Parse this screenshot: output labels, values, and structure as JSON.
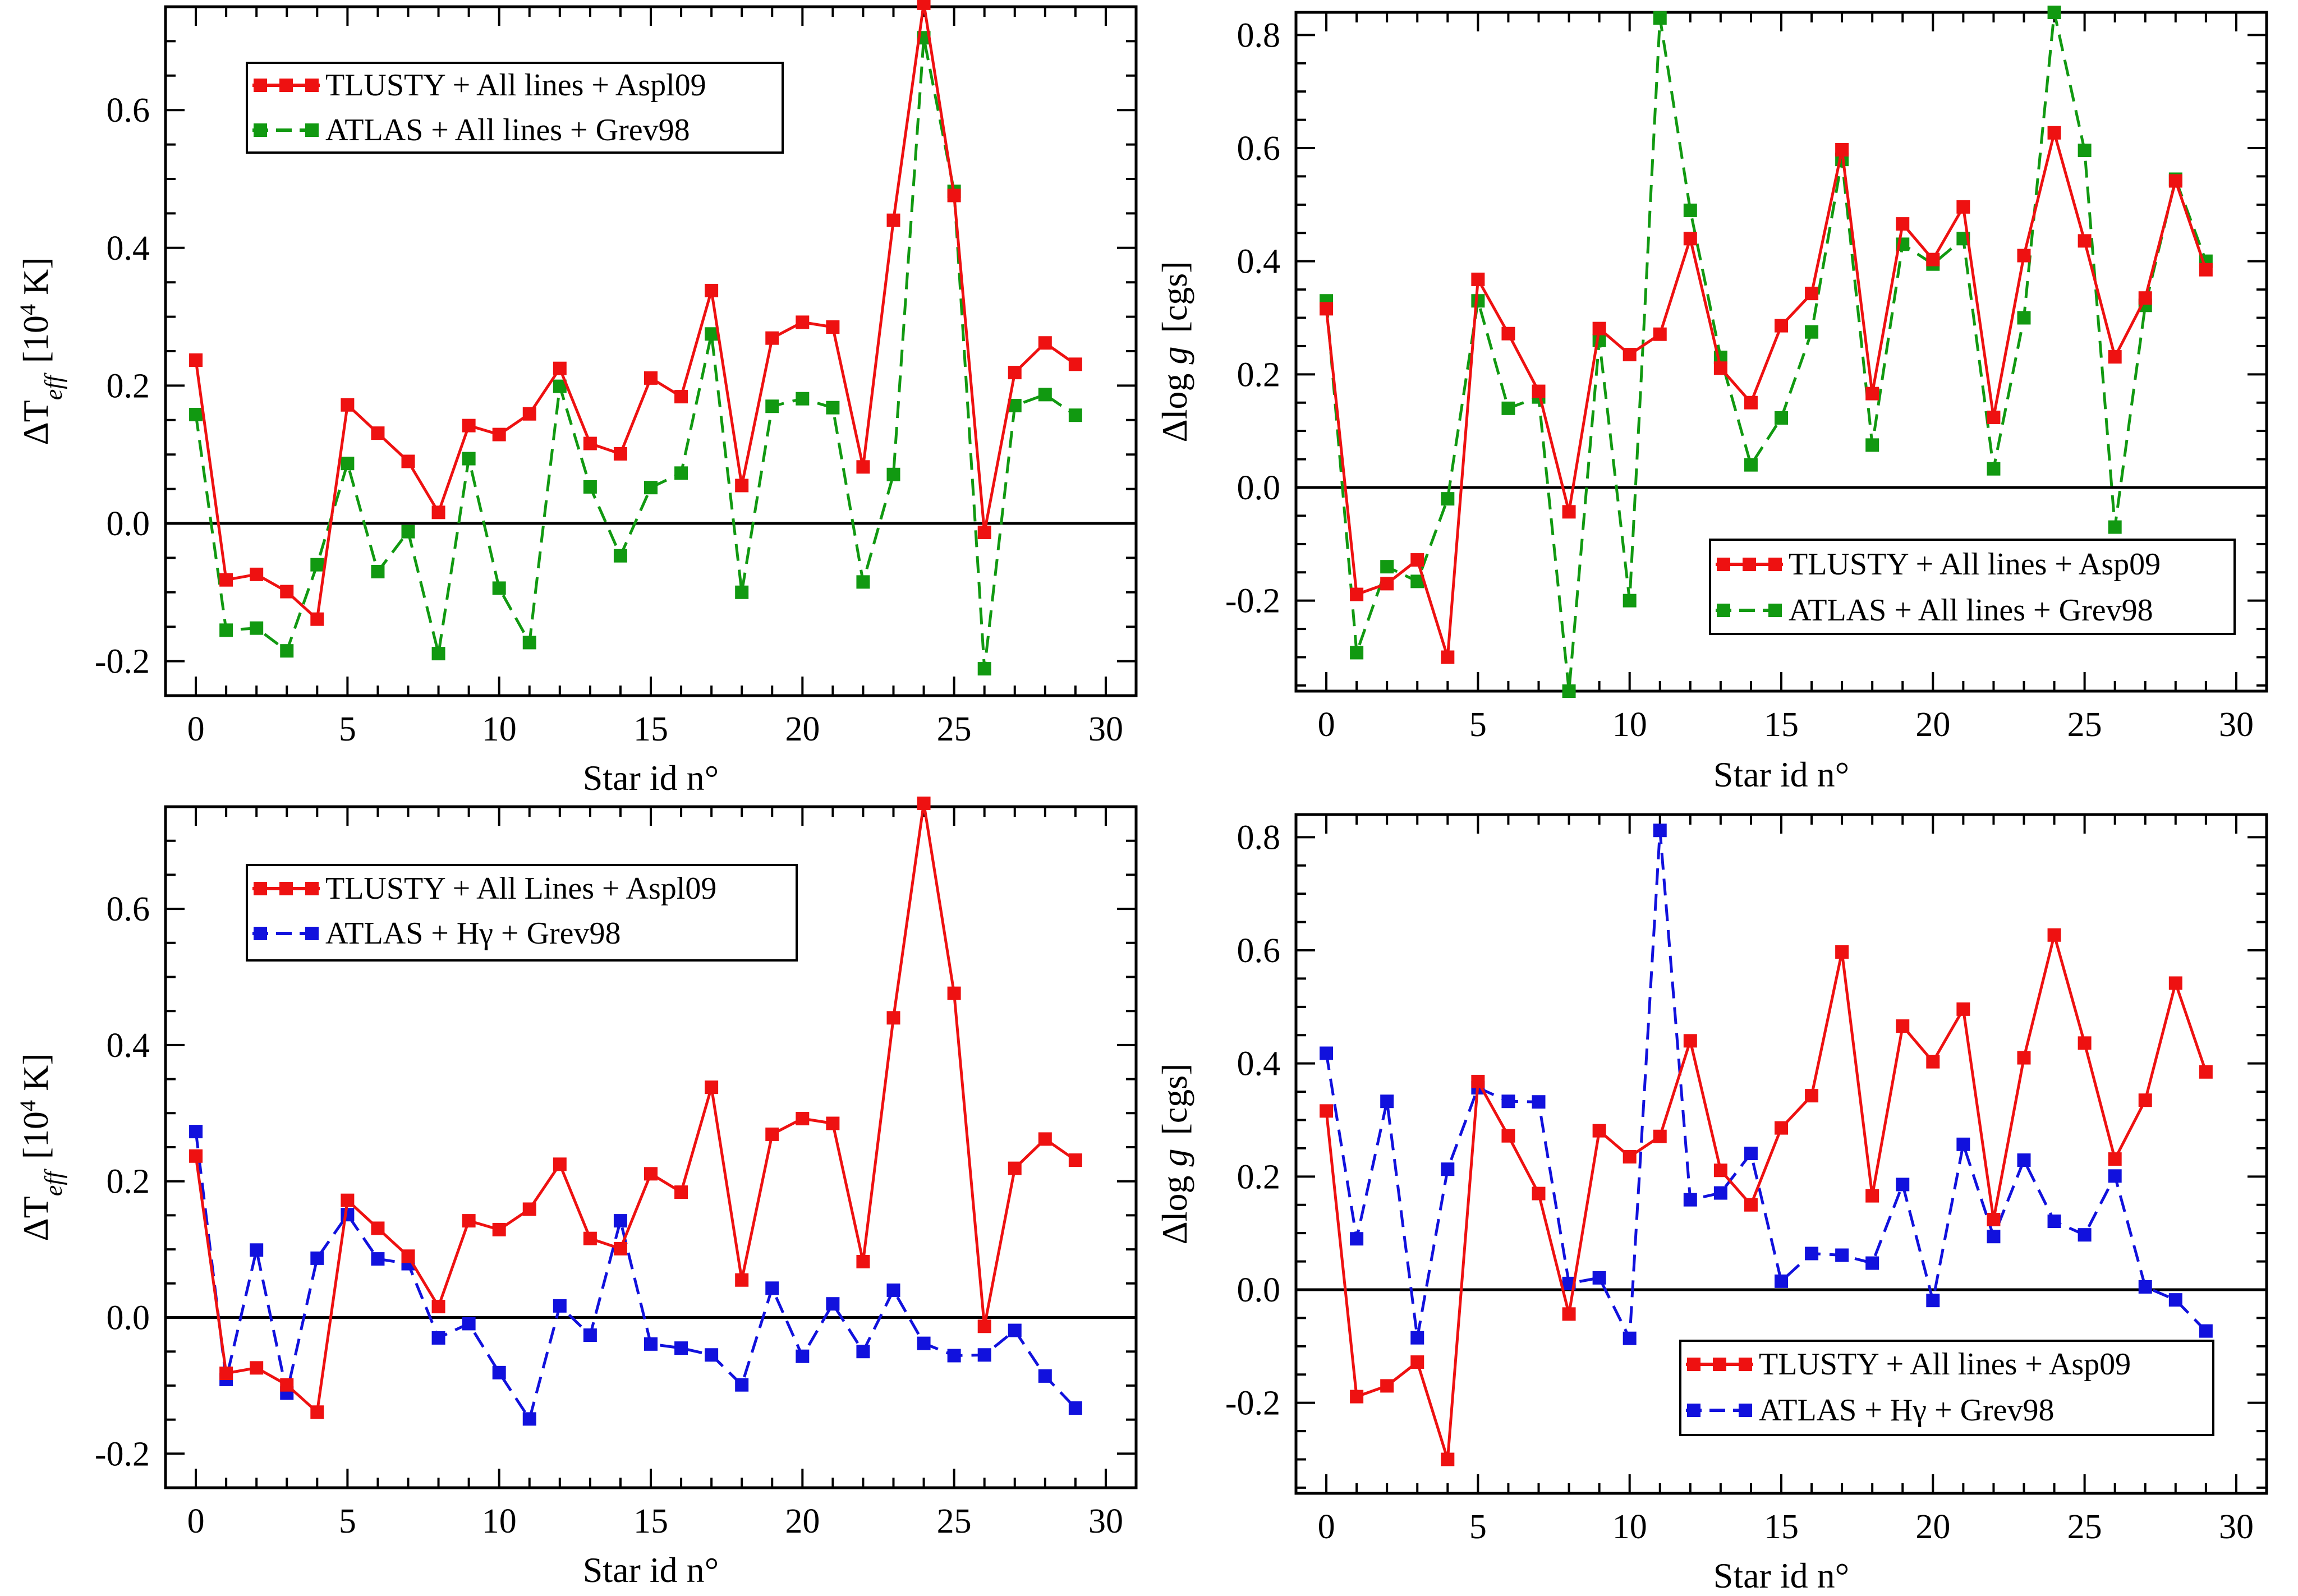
{
  "colors": {
    "red": "#ee1111",
    "green": "#119911",
    "blue": "#1111dd",
    "axis": "#000000"
  },
  "chart_data": [
    {
      "type": "line",
      "id": "teff_green",
      "ylabel": "ΔT",
      "ylabel_sub": "eff",
      "ylabel_unit_prefix": "[10",
      "ylabel_unit_exp": "4",
      "ylabel_unit_suffix": " K]",
      "xlabel": "Star id n°",
      "xlim": [
        -1,
        31
      ],
      "ylim": [
        -0.25,
        0.75
      ],
      "xticks": [
        0,
        5,
        10,
        15,
        20,
        25,
        30
      ],
      "xtick_labels": [
        "0",
        "5",
        "10",
        "15",
        "20",
        "25",
        "30"
      ],
      "yticks": [
        -0.2,
        0.0,
        0.2,
        0.4,
        0.6
      ],
      "ytick_labels": [
        "-0.2",
        "0.0",
        "0.2",
        "0.4",
        "0.6"
      ],
      "legend": "top-left",
      "series": [
        {
          "name": "TLUSTY + All lines + Aspl09",
          "color": "#ee1111",
          "dashed": false,
          "x": [
            0,
            1,
            2,
            3,
            4,
            5,
            6,
            7,
            8,
            9,
            10,
            11,
            12,
            13,
            14,
            15,
            16,
            17,
            18,
            19,
            20,
            21,
            22,
            23,
            24,
            25,
            26,
            27,
            28,
            29
          ],
          "values": [
            0.237,
            -0.082,
            -0.074,
            -0.099,
            -0.139,
            0.172,
            0.131,
            0.09,
            0.016,
            0.142,
            0.129,
            0.159,
            0.225,
            0.116,
            0.101,
            0.211,
            0.184,
            0.338,
            0.055,
            0.269,
            0.292,
            0.285,
            0.082,
            0.44,
            0.755,
            0.476,
            -0.013,
            0.219,
            0.262,
            0.231
          ]
        },
        {
          "name": "ATLAS + All lines + Grev98",
          "color": "#119911",
          "dashed": true,
          "x": [
            0,
            1,
            2,
            3,
            4,
            5,
            6,
            7,
            8,
            9,
            10,
            11,
            12,
            13,
            14,
            15,
            16,
            17,
            18,
            19,
            20,
            21,
            22,
            23,
            24,
            25,
            26,
            27,
            28,
            29
          ],
          "values": [
            0.158,
            -0.155,
            -0.152,
            -0.185,
            -0.06,
            0.087,
            -0.07,
            -0.012,
            -0.189,
            0.094,
            -0.094,
            -0.173,
            0.199,
            0.053,
            -0.047,
            0.052,
            0.073,
            0.275,
            -0.1,
            0.17,
            0.181,
            0.168,
            -0.085,
            0.071,
            0.705,
            0.482,
            -0.211,
            0.171,
            0.187,
            0.157
          ]
        }
      ]
    },
    {
      "type": "line",
      "id": "logg_green",
      "ylabel": "Δlog ",
      "ylabel_italic": "g",
      "ylabel_unit": "[cgs]",
      "xlabel": "Star id n°",
      "xlim": [
        -1,
        31
      ],
      "ylim": [
        -0.36,
        0.84
      ],
      "xticks": [
        0,
        5,
        10,
        15,
        20,
        25,
        30
      ],
      "xtick_labels": [
        "0",
        "5",
        "10",
        "15",
        "20",
        "25",
        "30"
      ],
      "yticks": [
        -0.2,
        0.0,
        0.2,
        0.4,
        0.6,
        0.8
      ],
      "ytick_labels": [
        "-0.2",
        "0.0",
        "0.2",
        "0.4",
        "0.6",
        "0.8"
      ],
      "legend": "bottom-right",
      "series": [
        {
          "name": "TLUSTY + All lines + Asp09",
          "color": "#ee1111",
          "dashed": false,
          "x": [
            0,
            1,
            2,
            3,
            4,
            5,
            6,
            7,
            8,
            9,
            10,
            11,
            12,
            13,
            14,
            15,
            16,
            17,
            18,
            19,
            20,
            21,
            22,
            23,
            24,
            25,
            26,
            27,
            28,
            29
          ],
          "values": [
            0.316,
            -0.189,
            -0.17,
            -0.128,
            -0.3,
            0.368,
            0.272,
            0.17,
            -0.043,
            0.281,
            0.235,
            0.271,
            0.44,
            0.211,
            0.15,
            0.286,
            0.343,
            0.597,
            0.166,
            0.466,
            0.403,
            0.496,
            0.124,
            0.41,
            0.627,
            0.436,
            0.231,
            0.335,
            0.542,
            0.385
          ]
        },
        {
          "name": "ATLAS + All lines + Grev98",
          "color": "#119911",
          "dashed": true,
          "x": [
            0,
            1,
            2,
            3,
            4,
            5,
            6,
            7,
            8,
            9,
            10,
            11,
            12,
            13,
            14,
            15,
            16,
            17,
            18,
            19,
            20,
            21,
            22,
            23,
            24,
            25,
            26,
            27,
            28,
            29
          ],
          "values": [
            0.33,
            -0.292,
            -0.14,
            -0.166,
            -0.02,
            0.33,
            0.14,
            0.16,
            -0.36,
            0.26,
            -0.2,
            0.83,
            0.49,
            0.23,
            0.04,
            0.123,
            0.275,
            0.58,
            0.075,
            0.43,
            0.395,
            0.44,
            0.033,
            0.3,
            0.84,
            0.596,
            -0.07,
            0.322,
            0.545,
            0.4
          ]
        }
      ]
    },
    {
      "type": "line",
      "id": "teff_blue",
      "ylabel": "ΔT",
      "ylabel_sub": "eff",
      "ylabel_unit_prefix": "[10",
      "ylabel_unit_exp": "4",
      "ylabel_unit_suffix": " K]",
      "xlabel": "Star id n°",
      "xlim": [
        -1,
        31
      ],
      "ylim": [
        -0.25,
        0.75
      ],
      "xticks": [
        0,
        5,
        10,
        15,
        20,
        25,
        30
      ],
      "xtick_labels": [
        "0",
        "5",
        "10",
        "15",
        "20",
        "25",
        "30"
      ],
      "yticks": [
        -0.2,
        0.0,
        0.2,
        0.4,
        0.6
      ],
      "ytick_labels": [
        "-0.2",
        "0.0",
        "0.2",
        "0.4",
        "0.6"
      ],
      "legend": "top-left",
      "series": [
        {
          "name": "TLUSTY + All Lines + Aspl09",
          "color": "#ee1111",
          "dashed": false,
          "x": [
            0,
            1,
            2,
            3,
            4,
            5,
            6,
            7,
            8,
            9,
            10,
            11,
            12,
            13,
            14,
            15,
            16,
            17,
            18,
            19,
            20,
            21,
            22,
            23,
            24,
            25,
            26,
            27,
            28,
            29
          ],
          "values": [
            0.237,
            -0.082,
            -0.074,
            -0.099,
            -0.139,
            0.172,
            0.131,
            0.09,
            0.016,
            0.142,
            0.129,
            0.159,
            0.225,
            0.116,
            0.101,
            0.211,
            0.184,
            0.338,
            0.055,
            0.269,
            0.292,
            0.285,
            0.082,
            0.44,
            0.755,
            0.476,
            -0.013,
            0.219,
            0.262,
            0.231
          ]
        },
        {
          "name": "ATLAS + Hγ + Grev98",
          "color": "#1111dd",
          "dashed": true,
          "x": [
            0,
            1,
            2,
            3,
            4,
            5,
            6,
            7,
            8,
            9,
            10,
            11,
            12,
            13,
            14,
            15,
            16,
            17,
            18,
            19,
            20,
            21,
            22,
            23,
            24,
            25,
            26,
            27,
            28,
            29
          ],
          "values": [
            0.273,
            -0.091,
            0.099,
            -0.111,
            0.087,
            0.151,
            0.086,
            0.079,
            -0.03,
            -0.009,
            -0.081,
            -0.149,
            0.017,
            -0.026,
            0.142,
            -0.039,
            -0.045,
            -0.055,
            -0.099,
            0.043,
            -0.057,
            0.02,
            -0.05,
            0.04,
            -0.038,
            -0.056,
            -0.055,
            -0.019,
            -0.086,
            -0.133
          ]
        }
      ]
    },
    {
      "type": "line",
      "id": "logg_blue",
      "ylabel": "Δlog ",
      "ylabel_italic": "g",
      "ylabel_unit": "[cgs]",
      "xlabel": "Star id n°",
      "xlim": [
        -1,
        31
      ],
      "ylim": [
        -0.36,
        0.84
      ],
      "xticks": [
        0,
        5,
        10,
        15,
        20,
        25,
        30
      ],
      "xtick_labels": [
        "0",
        "5",
        "10",
        "15",
        "20",
        "25",
        "30"
      ],
      "yticks": [
        -0.2,
        0.0,
        0.2,
        0.4,
        0.6,
        0.8
      ],
      "ytick_labels": [
        "-0.2",
        "0.0",
        "0.2",
        "0.4",
        "0.6",
        "0.8"
      ],
      "legend": "bottom-right",
      "series": [
        {
          "name": "TLUSTY + All lines + Asp09",
          "color": "#ee1111",
          "dashed": false,
          "x": [
            0,
            1,
            2,
            3,
            4,
            5,
            6,
            7,
            8,
            9,
            10,
            11,
            12,
            13,
            14,
            15,
            16,
            17,
            18,
            19,
            20,
            21,
            22,
            23,
            24,
            25,
            26,
            27,
            28,
            29
          ],
          "values": [
            0.316,
            -0.189,
            -0.17,
            -0.128,
            -0.3,
            0.368,
            0.272,
            0.17,
            -0.043,
            0.281,
            0.235,
            0.271,
            0.44,
            0.211,
            0.15,
            0.286,
            0.343,
            0.597,
            0.166,
            0.466,
            0.403,
            0.496,
            0.124,
            0.41,
            0.627,
            0.436,
            0.231,
            0.335,
            0.542,
            0.385
          ]
        },
        {
          "name": "ATLAS + Hγ + Grev98",
          "color": "#1111dd",
          "dashed": true,
          "x": [
            0,
            1,
            2,
            3,
            4,
            5,
            6,
            7,
            8,
            9,
            10,
            11,
            12,
            13,
            14,
            15,
            16,
            17,
            18,
            19,
            20,
            21,
            22,
            23,
            24,
            25,
            26,
            27,
            28,
            29
          ],
          "values": [
            0.418,
            0.09,
            0.333,
            -0.085,
            0.213,
            0.357,
            0.333,
            0.332,
            0.011,
            0.021,
            -0.086,
            0.812,
            0.159,
            0.171,
            0.241,
            0.015,
            0.064,
            0.061,
            0.047,
            0.186,
            -0.019,
            0.257,
            0.094,
            0.229,
            0.121,
            0.097,
            0.201,
            0.005,
            -0.018,
            -0.073
          ]
        }
      ]
    }
  ]
}
